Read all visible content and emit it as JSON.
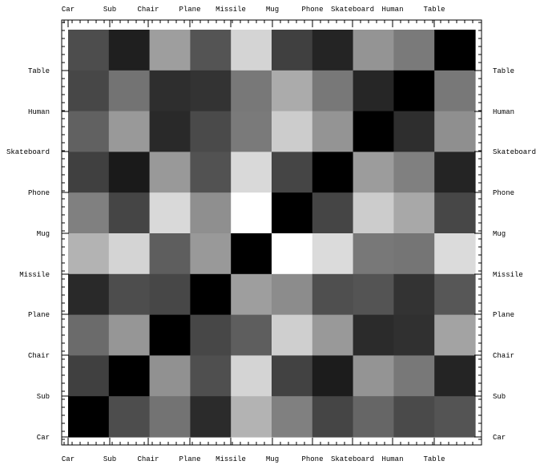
{
  "chart_data": {
    "type": "heatmap",
    "colormap": "grayscale",
    "title": "",
    "xlabel": "",
    "ylabel": "",
    "categories": [
      "Car",
      "Sub",
      "Chair",
      "Plane",
      "Missile",
      "Mug",
      "Phone",
      "Skateboard",
      "Human",
      "Table"
    ],
    "x_tick_labels": [
      "Car",
      "Sub",
      "Chair",
      "Plane",
      "Missile",
      "Mug",
      "Phone",
      "Skateboard",
      "Human",
      "Table"
    ],
    "y_tick_labels": [
      "Car",
      "Sub",
      "Chair",
      "Plane",
      "Missile",
      "Mug",
      "Phone",
      "Skateboard",
      "Human",
      "Table"
    ],
    "value_range": [
      0,
      1
    ],
    "values": [
      [
        0.3,
        0.12,
        0.62,
        0.33,
        0.83,
        0.25,
        0.14,
        0.58,
        0.48,
        0.0
      ],
      [
        0.28,
        0.45,
        0.18,
        0.2,
        0.47,
        0.67,
        0.47,
        0.15,
        0.0,
        0.47
      ],
      [
        0.38,
        0.6,
        0.16,
        0.29,
        0.48,
        0.8,
        0.58,
        0.0,
        0.18,
        0.56
      ],
      [
        0.25,
        0.1,
        0.6,
        0.32,
        0.85,
        0.27,
        0.0,
        0.61,
        0.5,
        0.14
      ],
      [
        0.5,
        0.27,
        0.85,
        0.56,
        1.0,
        0.0,
        0.27,
        0.8,
        0.66,
        0.28
      ],
      [
        0.7,
        0.83,
        0.37,
        0.6,
        0.0,
        1.0,
        0.86,
        0.47,
        0.46,
        0.86
      ],
      [
        0.16,
        0.3,
        0.28,
        0.0,
        0.62,
        0.55,
        0.31,
        0.33,
        0.2,
        0.34
      ],
      [
        0.42,
        0.59,
        0.0,
        0.28,
        0.37,
        0.81,
        0.6,
        0.17,
        0.19,
        0.64
      ],
      [
        0.25,
        0.0,
        0.57,
        0.31,
        0.83,
        0.26,
        0.11,
        0.58,
        0.47,
        0.14
      ],
      [
        0.0,
        0.3,
        0.45,
        0.17,
        0.7,
        0.5,
        0.27,
        0.4,
        0.29,
        0.33
      ]
    ]
  }
}
